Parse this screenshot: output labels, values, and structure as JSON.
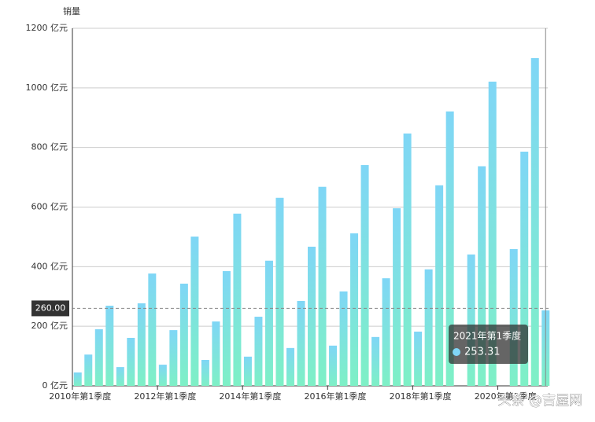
{
  "chart_data": {
    "type": "bar",
    "y_axis_name": "销量",
    "categories": [
      "2010年第1季度",
      null,
      null,
      null,
      null,
      null,
      null,
      null,
      "2012年第1季度",
      null,
      null,
      null,
      null,
      null,
      null,
      null,
      "2014年第1季度",
      null,
      null,
      null,
      null,
      null,
      null,
      null,
      "2016年第1季度",
      null,
      null,
      null,
      null,
      null,
      null,
      null,
      "2018年第1季度",
      null,
      null,
      null,
      null,
      null,
      null,
      null,
      "2020年第1季度",
      null,
      null,
      null,
      null
    ],
    "values": [
      45,
      105,
      190,
      269,
      63,
      161,
      277,
      377,
      71,
      187,
      343,
      501,
      87,
      216,
      385,
      578,
      98,
      232,
      420,
      631,
      127,
      285,
      467,
      668,
      135,
      317,
      512,
      741,
      164,
      361,
      596,
      847,
      182,
      391,
      673,
      921,
      null,
      441,
      737,
      1021,
      null,
      459,
      786,
      1100,
      253.31
    ],
    "ylim": [
      0,
      1200
    ],
    "yticks": [
      {
        "value": 0,
        "label": "0 亿元"
      },
      {
        "value": 200,
        "label": "200 亿元"
      },
      {
        "value": 400,
        "label": "400 亿元"
      },
      {
        "value": 600,
        "label": "600 亿元"
      },
      {
        "value": 800,
        "label": "800 亿元"
      },
      {
        "value": 1000,
        "label": "1000 亿元"
      },
      {
        "value": 1200,
        "label": "1200 亿元"
      }
    ],
    "grid": true,
    "color_top": "#7fd6f6",
    "color_bottom": "#7ef0c6",
    "axis_pointer": {
      "value": 260,
      "label": "260.00"
    },
    "tooltip": {
      "title": "2021年第1季度",
      "index": 44
    },
    "watermark": "头条 @吉屋网"
  }
}
